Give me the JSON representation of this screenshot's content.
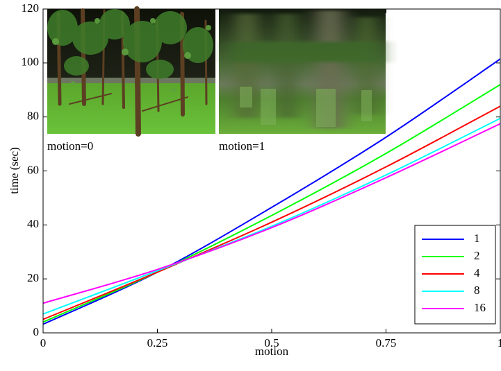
{
  "chart_data": {
    "type": "line",
    "xlabel": "motion",
    "ylabel": "time (sec)",
    "xlim": [
      0,
      1
    ],
    "ylim": [
      0,
      120
    ],
    "xticks": [
      0,
      0.25,
      0.5,
      0.75,
      1
    ],
    "xtick_labels": [
      "0",
      "0.25",
      "0.5",
      "0.75",
      "1"
    ],
    "yticks": [
      0,
      20,
      40,
      60,
      80,
      100,
      120
    ],
    "ytick_labels": [
      "0",
      "20",
      "40",
      "60",
      "80",
      "100",
      "120"
    ],
    "grid": false,
    "legend_position": "bottom-right",
    "x": [
      0,
      0.25,
      0.5,
      0.75,
      1
    ],
    "series": [
      {
        "name": "1",
        "color": "#0000ff",
        "values": [
          3.2,
          22.5,
          46.5,
          72.5,
          101.5
        ]
      },
      {
        "name": "2",
        "color": "#00ff00",
        "values": [
          4.0,
          22.5,
          43.5,
          66.5,
          92.0
        ]
      },
      {
        "name": "4",
        "color": "#ff0000",
        "values": [
          5.0,
          22.5,
          41.0,
          61.5,
          84.0
        ]
      },
      {
        "name": "8",
        "color": "#00ffff",
        "values": [
          7.0,
          23.0,
          39.5,
          58.5,
          79.5
        ]
      },
      {
        "name": "16",
        "color": "#ff00ff",
        "values": [
          11.0,
          23.5,
          39.0,
          57.5,
          77.5
        ]
      }
    ]
  },
  "insets": [
    {
      "caption": "motion=0",
      "image": "forest-render-sharp"
    },
    {
      "caption": "motion=1",
      "image": "forest-render-motion-blurred"
    }
  ]
}
